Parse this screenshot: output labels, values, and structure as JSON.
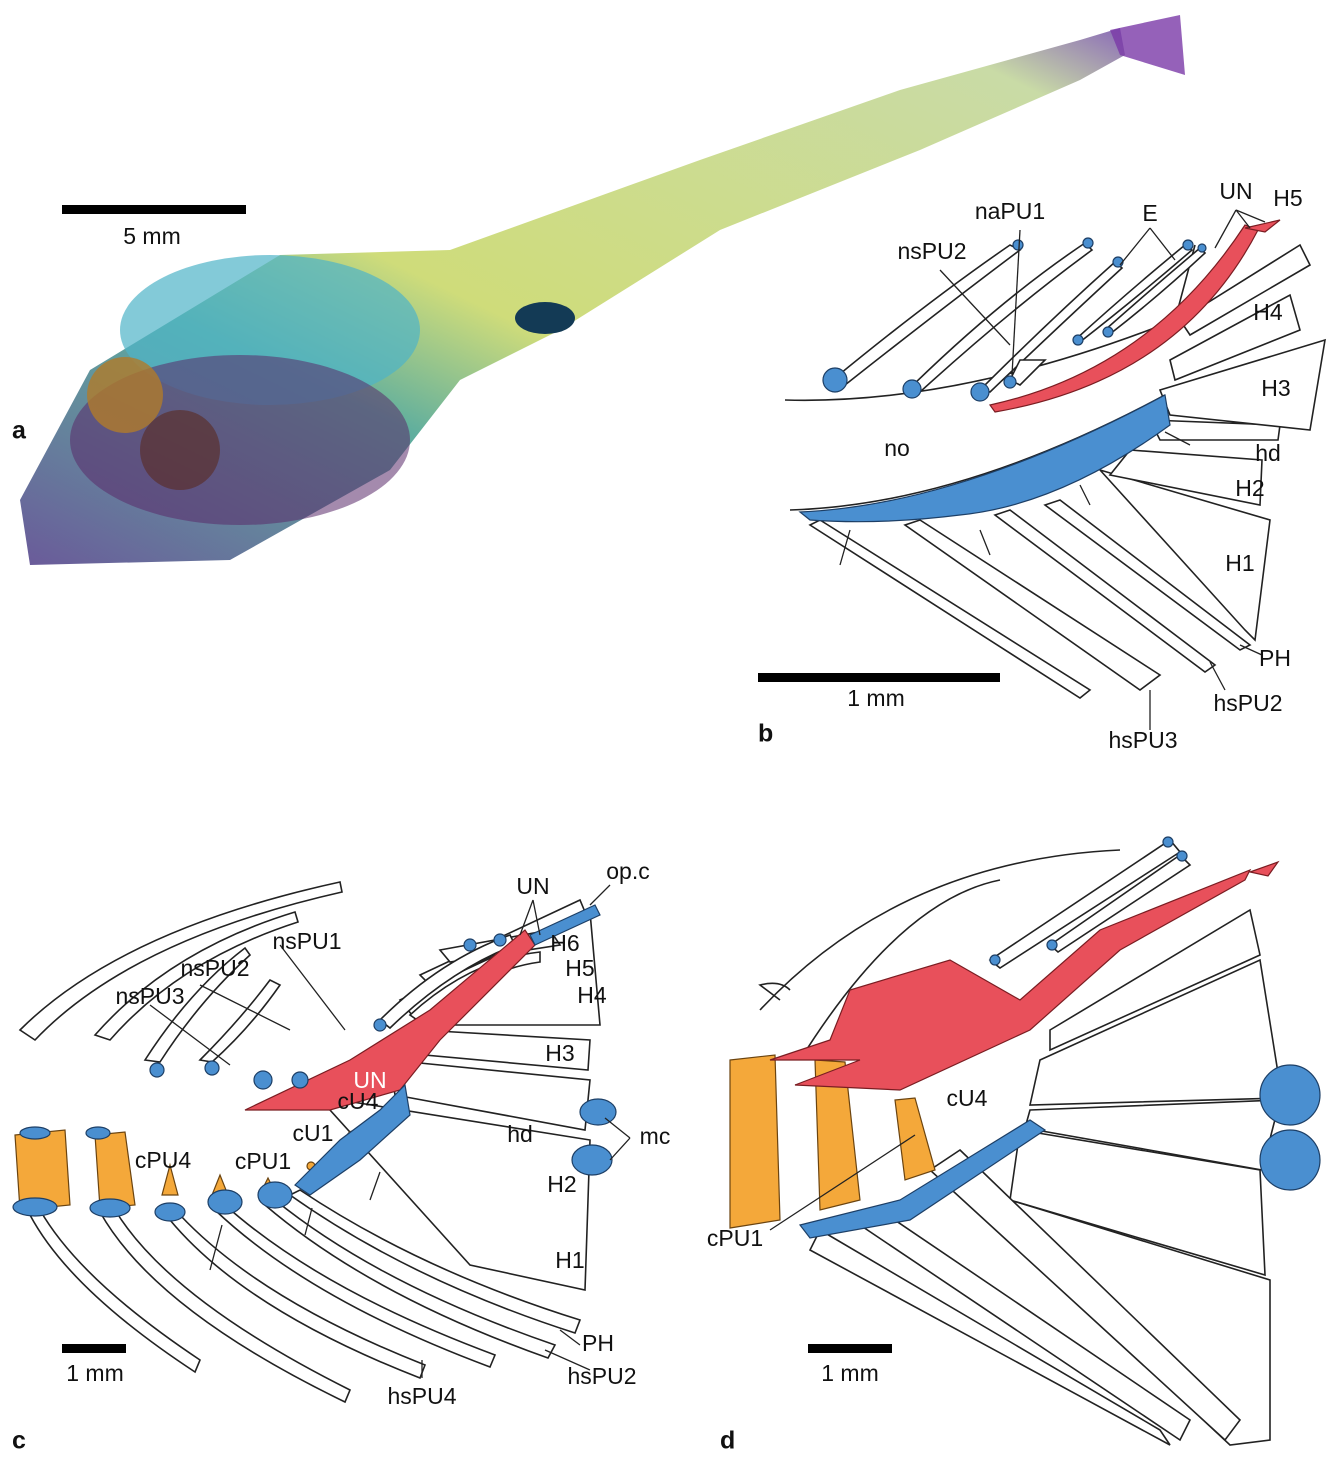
{
  "panels": [
    {
      "label": "a",
      "scale_bar": "5 mm"
    },
    {
      "label": "b",
      "scale_bar": "1 mm",
      "annotations": [
        "naPU1",
        "E",
        "UN",
        "H5",
        "nsPU2",
        "H4",
        "H3",
        "no",
        "hd",
        "H2",
        "H1",
        "PH",
        "hsPU2",
        "hsPU3"
      ]
    },
    {
      "label": "c",
      "scale_bar": "1 mm",
      "annotations": [
        "UN",
        "op.c",
        "nsPU1",
        "H6",
        "nsPU2",
        "H5",
        "nsPU3",
        "H4",
        "H3",
        "UN",
        "cU4",
        "hd",
        "mc",
        "cU1",
        "cPU4",
        "cPU1",
        "H2",
        "H1",
        "PH",
        "hsPU4",
        "hsPU2"
      ]
    },
    {
      "label": "d",
      "scale_bar": "1 mm",
      "annotations": [
        "cU4",
        "cPU1"
      ]
    }
  ]
}
